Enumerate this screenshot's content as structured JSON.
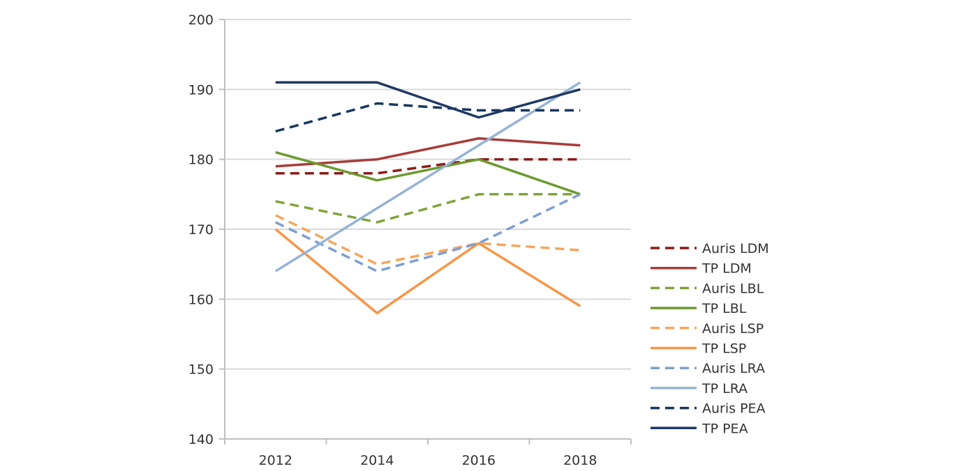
{
  "chart_data": {
    "type": "line",
    "title": "",
    "xlabel": "",
    "ylabel": "",
    "x": [
      "2012",
      "2014",
      "2016",
      "2018"
    ],
    "ylim": [
      140,
      200
    ],
    "yticks": [
      "140",
      "150",
      "160",
      "170",
      "180",
      "190",
      "200"
    ],
    "grid": true,
    "legend_position": "right",
    "series": [
      {
        "name": "Auris LDM",
        "values": [
          178,
          178,
          180,
          180
        ],
        "color": "#8b1a1a",
        "style": "dashed"
      },
      {
        "name": "TP LDM",
        "values": [
          179,
          180,
          183,
          182
        ],
        "color": "#a83c3c",
        "style": "solid"
      },
      {
        "name": "Auris LBL",
        "values": [
          174,
          171,
          175,
          175
        ],
        "color": "#7fa33a",
        "style": "dashed"
      },
      {
        "name": "TP LBL",
        "values": [
          181,
          177,
          180,
          175
        ],
        "color": "#6b9a2e",
        "style": "solid"
      },
      {
        "name": "Auris LSP",
        "values": [
          172,
          165,
          168,
          167
        ],
        "color": "#f6a65a",
        "style": "dashed"
      },
      {
        "name": "TP LSP",
        "values": [
          170,
          158,
          168,
          159
        ],
        "color": "#f79646",
        "style": "solid"
      },
      {
        "name": "Auris LRA",
        "values": [
          171,
          164,
          168,
          175
        ],
        "color": "#7f9fd0",
        "style": "dashed"
      },
      {
        "name": "TP LRA",
        "values": [
          164,
          173,
          182,
          191
        ],
        "color": "#95b3d7",
        "style": "solid"
      },
      {
        "name": "Auris PEA",
        "values": [
          184,
          188,
          187,
          187
        ],
        "color": "#17365d",
        "style": "dashed"
      },
      {
        "name": "TP PEA",
        "values": [
          191,
          191,
          186,
          190
        ],
        "color": "#1f3864",
        "style": "solid"
      }
    ]
  }
}
